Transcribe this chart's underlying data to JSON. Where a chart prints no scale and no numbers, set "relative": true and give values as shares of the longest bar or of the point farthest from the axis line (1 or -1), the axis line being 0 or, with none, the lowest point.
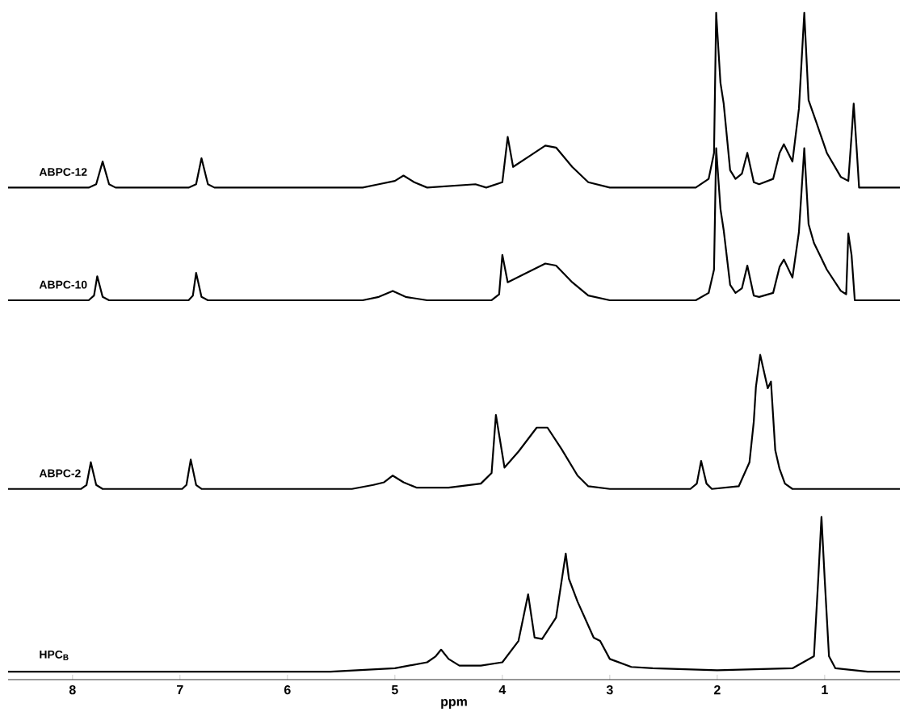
{
  "chart_data": {
    "type": "line",
    "relative": true,
    "tick_labels": "x",
    "xlabel": "ppm",
    "xlim": [
      8.6,
      0.3
    ],
    "xticks": [
      8,
      7,
      6,
      5,
      4,
      3,
      2,
      1
    ],
    "series": [
      {
        "name": "ABPC-12",
        "color": "#000000",
        "x": [
          8.6,
          7.85,
          7.78,
          7.72,
          7.66,
          7.6,
          6.92,
          6.85,
          6.8,
          6.74,
          6.68,
          5.3,
          5.15,
          5.0,
          4.92,
          4.82,
          4.7,
          4.25,
          4.15,
          4.0,
          3.95,
          3.9,
          3.75,
          3.6,
          3.5,
          3.35,
          3.2,
          3.0,
          2.2,
          2.08,
          2.03,
          2.01,
          1.97,
          1.94,
          1.88,
          1.83,
          1.77,
          1.72,
          1.66,
          1.61,
          1.48,
          1.42,
          1.38,
          1.3,
          1.24,
          1.19,
          1.15,
          1.08,
          0.98,
          0.85,
          0.78,
          0.75,
          0.73,
          0.7,
          0.68,
          0.3
        ],
        "values": [
          0.738,
          0.738,
          0.743,
          0.777,
          0.743,
          0.738,
          0.738,
          0.743,
          0.782,
          0.743,
          0.738,
          0.738,
          0.743,
          0.748,
          0.756,
          0.746,
          0.738,
          0.743,
          0.738,
          0.746,
          0.814,
          0.769,
          0.785,
          0.801,
          0.798,
          0.769,
          0.746,
          0.738,
          0.738,
          0.751,
          0.79,
          1,
          0.895,
          0.864,
          0.764,
          0.751,
          0.759,
          0.79,
          0.746,
          0.743,
          0.751,
          0.79,
          0.803,
          0.777,
          0.856,
          1,
          0.869,
          0.837,
          0.79,
          0.754,
          0.748,
          0.816,
          0.864,
          0.79,
          0.738,
          0.738
        ]
      },
      {
        "name": "ABPC-10",
        "color": "#000000",
        "x": [
          8.6,
          7.85,
          7.8,
          7.77,
          7.72,
          7.66,
          6.92,
          6.88,
          6.85,
          6.8,
          6.74,
          5.3,
          5.15,
          5.02,
          4.9,
          4.7,
          4.1,
          4.03,
          4.0,
          3.95,
          3.8,
          3.6,
          3.5,
          3.35,
          3.2,
          3.0,
          2.2,
          2.08,
          2.03,
          2.01,
          1.97,
          1.94,
          1.88,
          1.83,
          1.77,
          1.72,
          1.66,
          1.61,
          1.48,
          1.42,
          1.38,
          1.3,
          1.24,
          1.19,
          1.15,
          1.1,
          0.98,
          0.85,
          0.8,
          0.78,
          0.75,
          0.72,
          0.3
        ],
        "values": [
          0.569,
          0.569,
          0.576,
          0.605,
          0.574,
          0.569,
          0.569,
          0.576,
          0.61,
          0.574,
          0.569,
          0.569,
          0.574,
          0.583,
          0.574,
          0.569,
          0.569,
          0.578,
          0.637,
          0.596,
          0.608,
          0.624,
          0.621,
          0.596,
          0.576,
          0.569,
          0.569,
          0.58,
          0.615,
          0.797,
          0.706,
          0.674,
          0.592,
          0.58,
          0.587,
          0.621,
          0.576,
          0.574,
          0.58,
          0.619,
          0.63,
          0.603,
          0.671,
          0.797,
          0.683,
          0.655,
          0.615,
          0.583,
          0.578,
          0.669,
          0.637,
          0.569,
          0.569
        ]
      },
      {
        "name": "ABPC-2",
        "color": "#000000",
        "x": [
          8.6,
          7.92,
          7.87,
          7.83,
          7.78,
          7.72,
          6.98,
          6.94,
          6.9,
          6.85,
          6.8,
          5.4,
          5.2,
          5.1,
          5.02,
          4.92,
          4.8,
          4.5,
          4.2,
          4.1,
          4.06,
          3.98,
          3.85,
          3.68,
          3.58,
          3.45,
          3.3,
          3.2,
          3.0,
          2.25,
          2.19,
          2.15,
          2.1,
          2.05,
          1.8,
          1.7,
          1.66,
          1.64,
          1.6,
          1.53,
          1.5,
          1.46,
          1.42,
          1.37,
          1.3,
          0.3
        ],
        "values": [
          0.286,
          0.286,
          0.292,
          0.326,
          0.292,
          0.286,
          0.286,
          0.292,
          0.33,
          0.292,
          0.286,
          0.286,
          0.292,
          0.296,
          0.306,
          0.296,
          0.288,
          0.288,
          0.294,
          0.31,
          0.397,
          0.318,
          0.342,
          0.378,
          0.378,
          0.346,
          0.306,
          0.29,
          0.286,
          0.286,
          0.294,
          0.328,
          0.294,
          0.286,
          0.29,
          0.326,
          0.387,
          0.439,
          0.487,
          0.437,
          0.447,
          0.344,
          0.316,
          0.294,
          0.286,
          0.286
        ]
      },
      {
        "name": "HPC$_{B}$",
        "color": "#000000",
        "x": [
          8.6,
          5.6,
          5.0,
          4.7,
          4.62,
          4.57,
          4.5,
          4.4,
          4.2,
          4.0,
          3.85,
          3.76,
          3.7,
          3.63,
          3.5,
          3.41,
          3.38,
          3.3,
          3.15,
          3.09,
          3.0,
          2.8,
          2.6,
          2.0,
          1.3,
          1.1,
          1.06,
          1.03,
          1.0,
          0.96,
          0.9,
          0.6,
          0.3
        ],
        "values": [
          0.012,
          0.012,
          0.017,
          0.026,
          0.035,
          0.045,
          0.031,
          0.021,
          0.021,
          0.026,
          0.058,
          0.128,
          0.063,
          0.061,
          0.093,
          0.189,
          0.151,
          0.117,
          0.063,
          0.058,
          0.031,
          0.019,
          0.017,
          0.014,
          0.017,
          0.035,
          0.151,
          0.244,
          0.151,
          0.035,
          0.017,
          0.012,
          0.012
        ]
      }
    ]
  }
}
